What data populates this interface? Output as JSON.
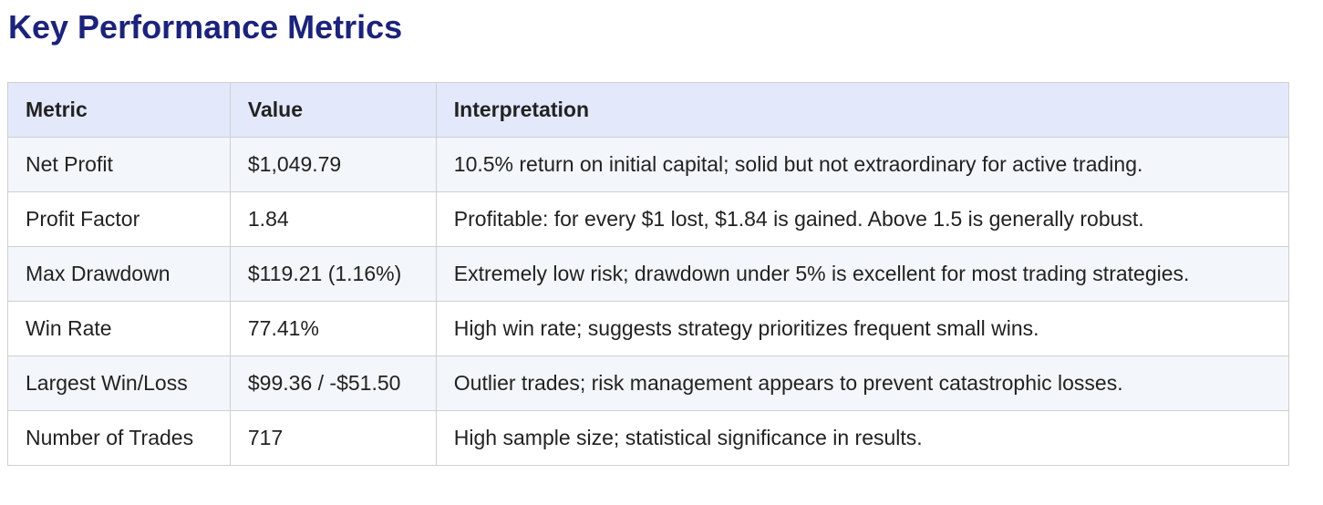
{
  "page": {
    "title": "Key Performance Metrics"
  },
  "table": {
    "headers": {
      "metric": "Metric",
      "value": "Value",
      "interpretation": "Interpretation"
    },
    "rows": [
      {
        "metric": "Net Profit",
        "value": "$1,049.79",
        "interpretation": "10.5% return on initial capital; solid but not extraordinary for active trading."
      },
      {
        "metric": "Profit Factor",
        "value": "1.84",
        "interpretation": "Profitable: for every $1 lost, $1.84 is gained. Above 1.5 is generally robust."
      },
      {
        "metric": "Max Drawdown",
        "value": "$119.21 (1.16%)",
        "interpretation": "Extremely low risk; drawdown under 5% is excellent for most trading strategies."
      },
      {
        "metric": "Win Rate",
        "value": "77.41%",
        "interpretation": "High win rate; suggests strategy prioritizes frequent small wins."
      },
      {
        "metric": "Largest Win/Loss",
        "value": "$99.36 / -$51.50",
        "interpretation": "Outlier trades; risk management appears to prevent catastrophic losses."
      },
      {
        "metric": "Number of Trades",
        "value": "717",
        "interpretation": "High sample size; statistical significance in results."
      }
    ]
  },
  "colors": {
    "title": "#1b237a",
    "header_bg": "#e3e9fb",
    "row_alt_bg": "#f3f6fa",
    "border": "#cfcfcf"
  }
}
